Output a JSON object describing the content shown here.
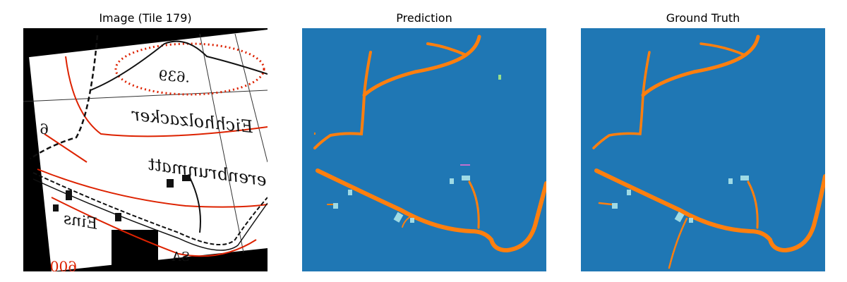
{
  "panels": [
    {
      "title": "Image (Tile 179)"
    },
    {
      "title": "Prediction"
    },
    {
      "title": "Ground Truth"
    }
  ],
  "map_text": {
    "label_639": ".639",
    "label_eichholz": "Eichholzacker",
    "label_brunn": "erenbrunmatt",
    "label_eins": "Eins",
    "label_6": "6",
    "label_sa": "SA",
    "label_60": "600"
  },
  "colors": {
    "background_class": "#1f77b4",
    "road_class": "#ff7f0e",
    "building_class": "#9edae5",
    "misc_green": "#98df8a",
    "misc_purple": "#c070d0",
    "contour_red": "#dd2200",
    "map_ink": "#111111"
  }
}
